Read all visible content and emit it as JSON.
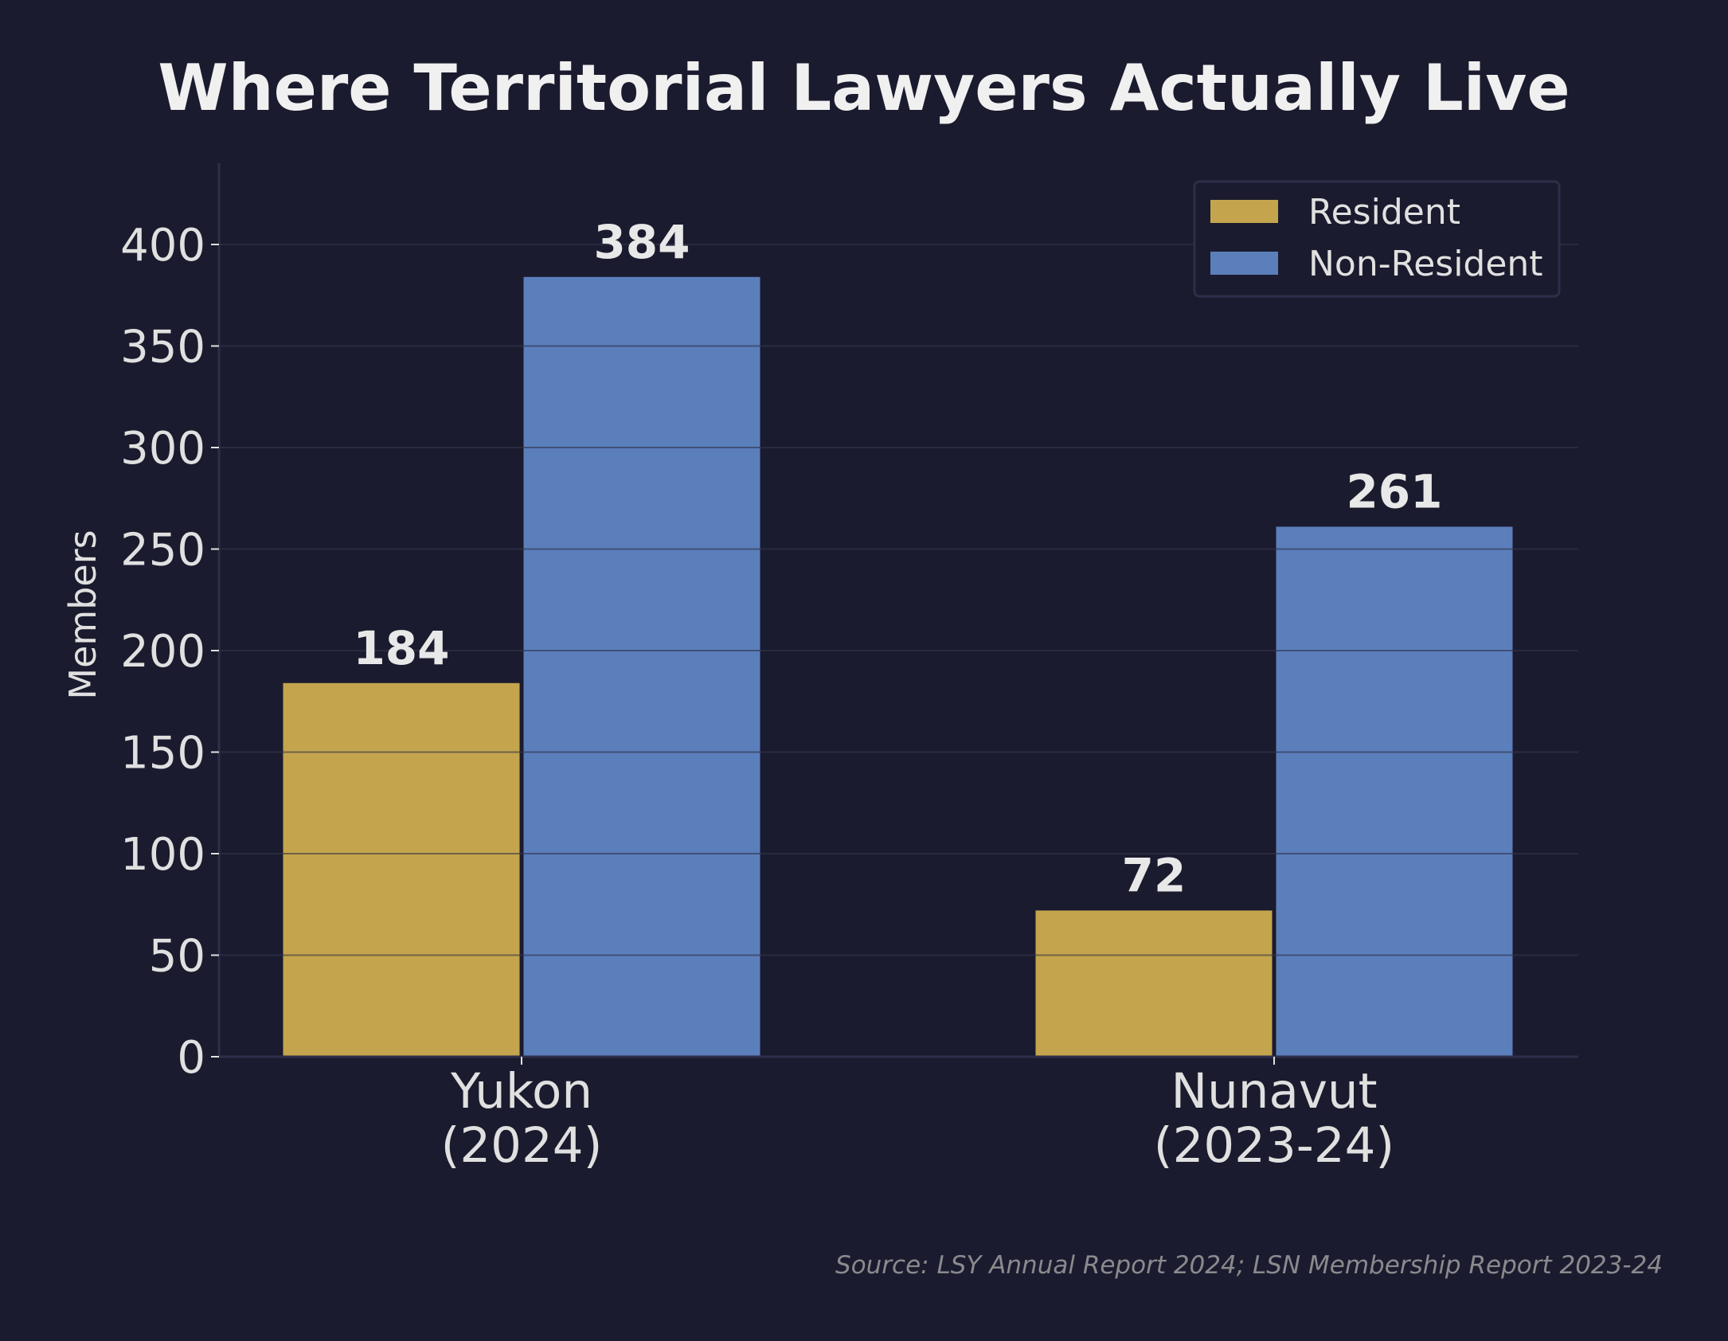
{
  "chart_data": {
    "type": "bar",
    "title": "Where Territorial Lawyers Actually Live",
    "xlabel": "",
    "ylabel": "Members",
    "categories": [
      [
        "Yukon",
        "(2024)"
      ],
      [
        "Nunavut",
        "(2023-24)"
      ]
    ],
    "series": [
      {
        "name": "Resident",
        "values": [
          184,
          72
        ],
        "color": "#c4a54e"
      },
      {
        "name": "Non-Resident",
        "values": [
          384,
          261
        ],
        "color": "#5b7fbb"
      }
    ],
    "ylim": [
      0,
      440
    ],
    "yticks": [
      0,
      50,
      100,
      150,
      200,
      250,
      300,
      350,
      400
    ],
    "grid": true,
    "legend_position": "top-right",
    "source": "Source: LSY Annual Report 2024; LSN Membership Report 2023-24"
  }
}
